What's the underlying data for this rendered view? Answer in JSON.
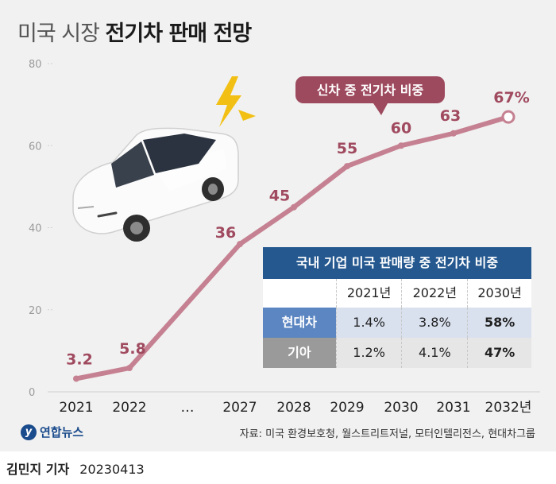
{
  "title": {
    "light": "미국 시장",
    "bold": "전기차 판매 전망"
  },
  "chart_data": {
    "type": "line",
    "categories": [
      "2021",
      "2022",
      "…",
      "2027",
      "2028",
      "2029",
      "2030",
      "2031",
      "2032년"
    ],
    "series": [
      {
        "name": "신차 중 전기차 비중",
        "values": [
          3.2,
          5.8,
          null,
          36,
          45,
          55,
          60,
          63,
          67
        ]
      }
    ],
    "value_labels": [
      "3.2",
      "5.8",
      "",
      "36",
      "45",
      "55",
      "60",
      "63",
      "67%"
    ],
    "y_ticks": [
      "0",
      "20",
      "40",
      "60",
      "80"
    ],
    "ylim": [
      0,
      80
    ],
    "grid": false,
    "line_color": "#c58191",
    "label_color": "#a04a5f"
  },
  "table": {
    "title": "국내 기업 미국 판매량 중 전기차 비중",
    "years": [
      "2021년",
      "2022년",
      "2030년"
    ],
    "rows": [
      {
        "company": "현대차",
        "values": [
          "1.4%",
          "3.8%",
          "58%"
        ]
      },
      {
        "company": "기아",
        "values": [
          "1.2%",
          "4.1%",
          "47%"
        ]
      }
    ]
  },
  "logo": {
    "text": "연합뉴스"
  },
  "source": "자료: 미국 환경보호청, 월스트리트저널, 모터인텔리전스, 현대차그룹",
  "credit": {
    "name": "김민지 기자",
    "date": "20230413"
  }
}
